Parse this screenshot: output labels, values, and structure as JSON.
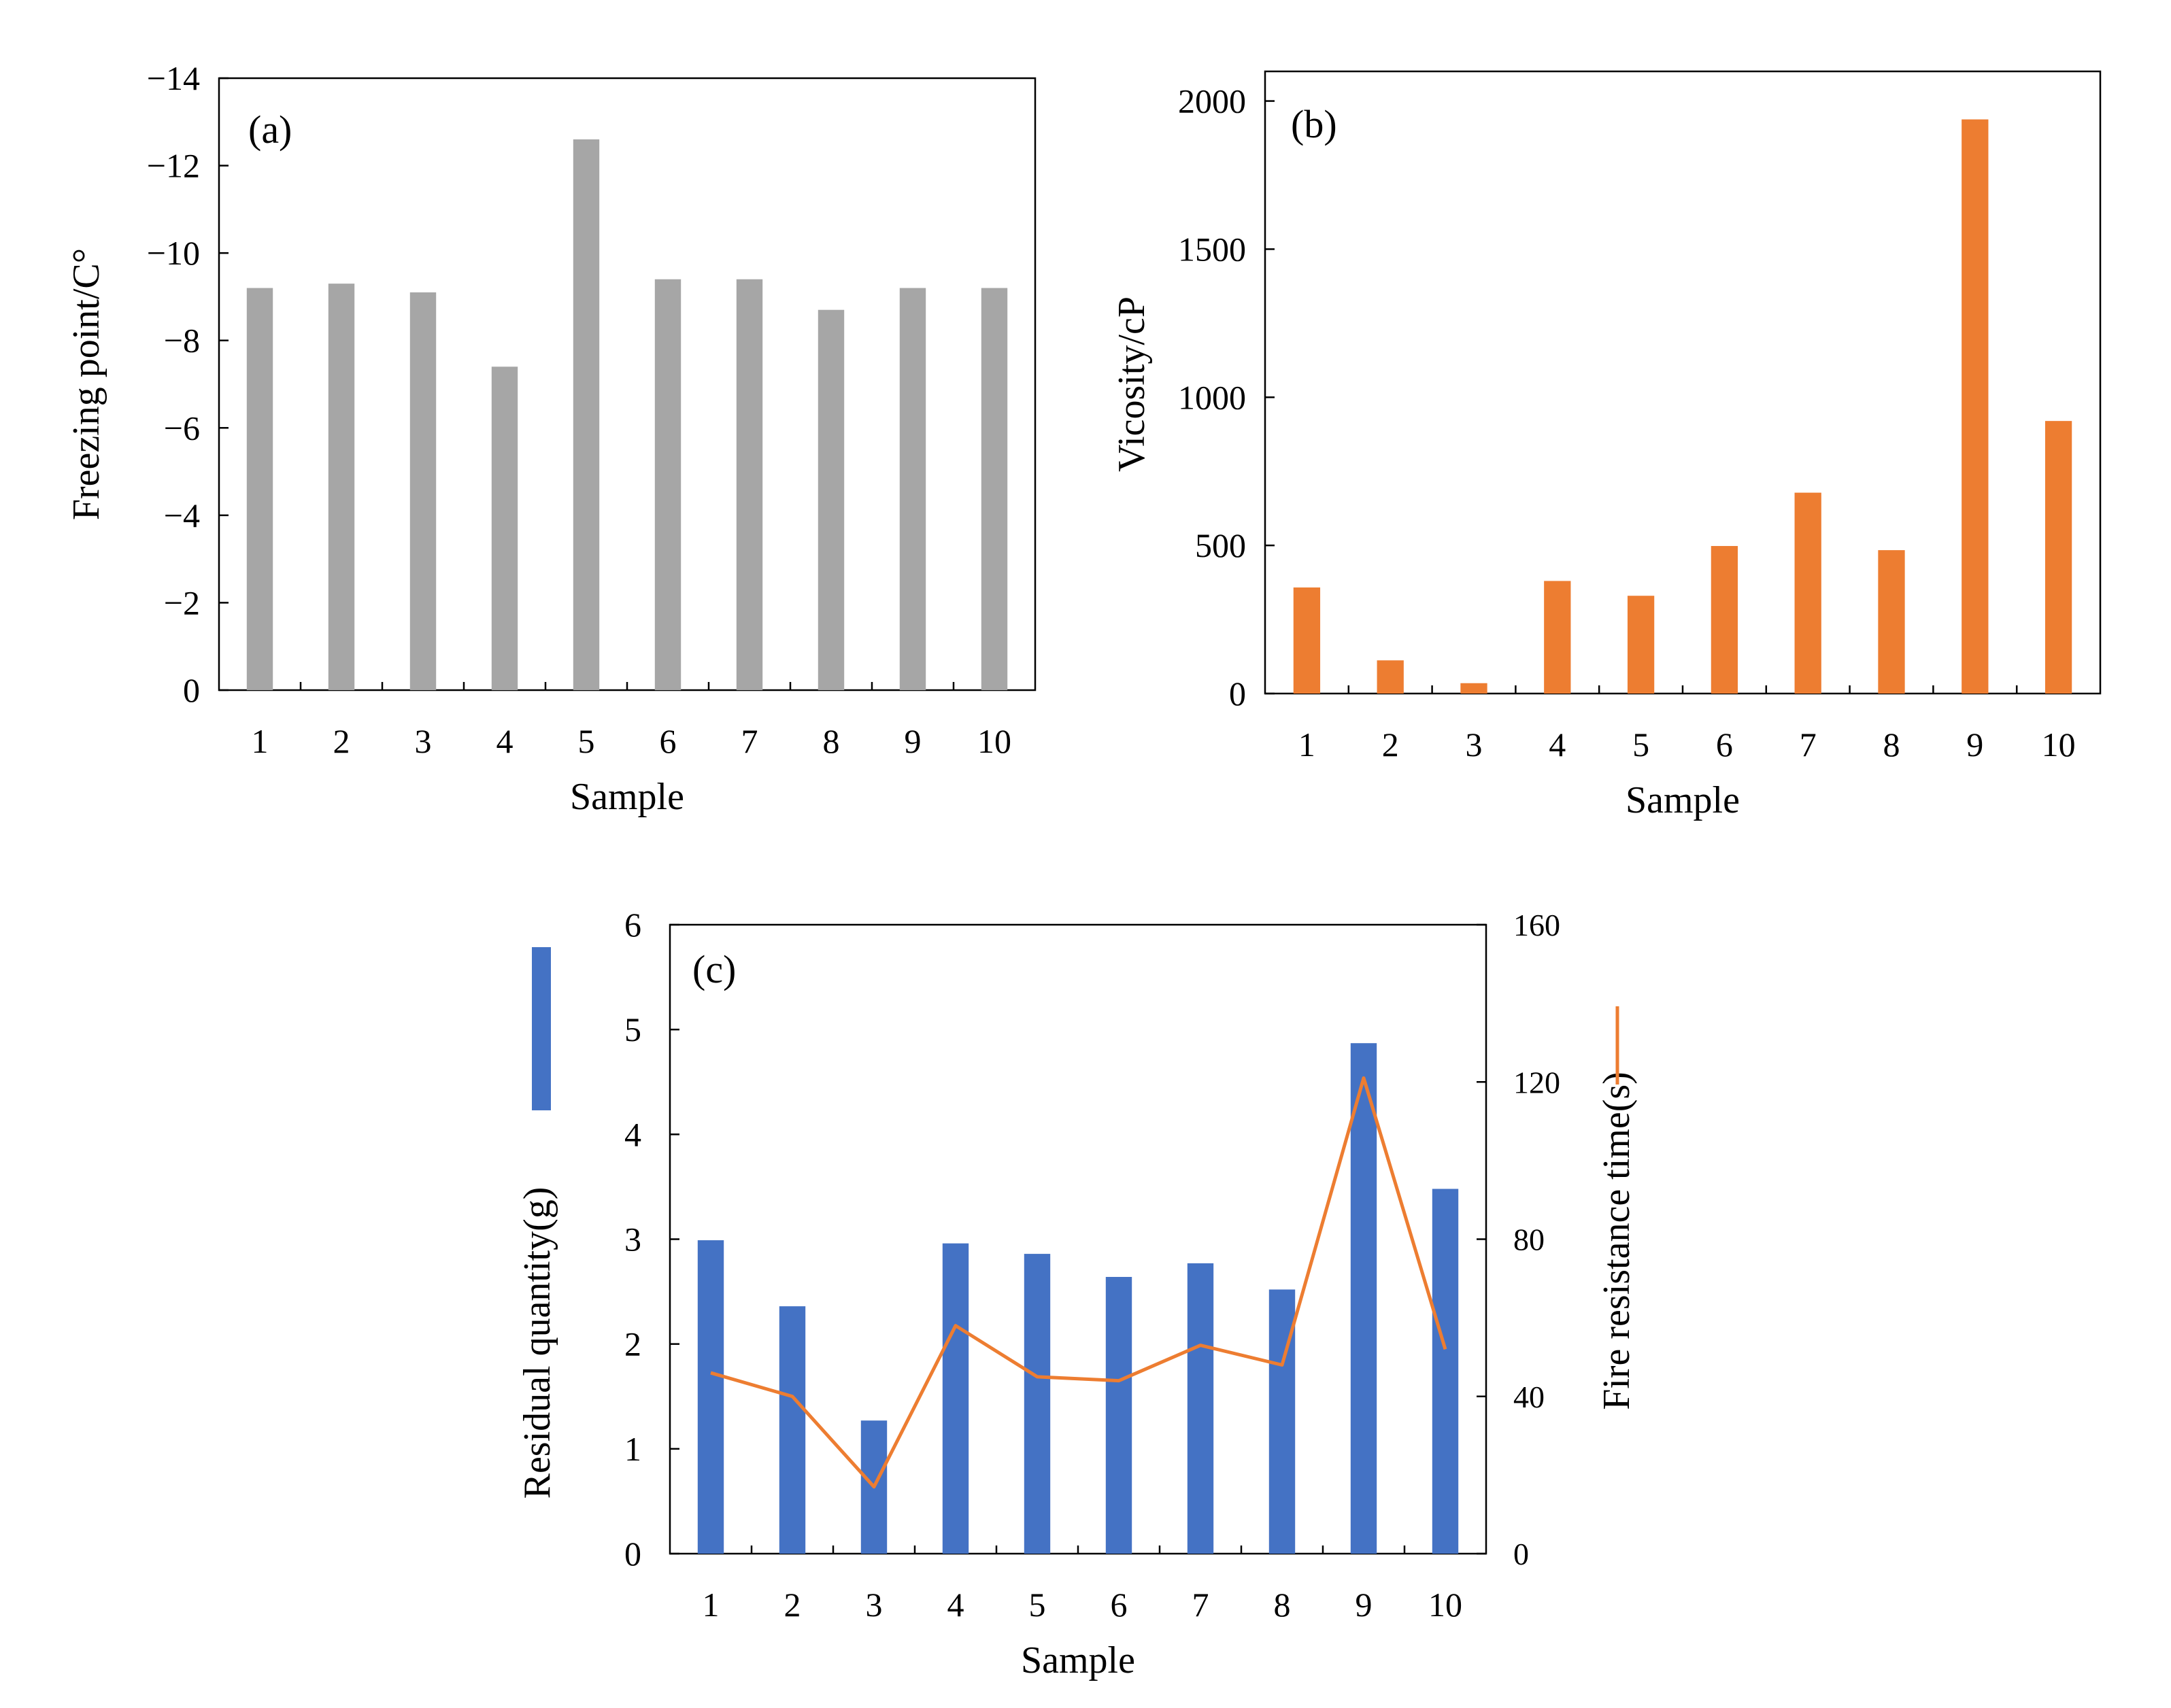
{
  "chart_data": [
    {
      "panel": "(a)",
      "type": "bar",
      "title": "",
      "xlabel": "Sample",
      "ylabel": "Freezing point/C°",
      "categories": [
        "1",
        "2",
        "3",
        "4",
        "5",
        "6",
        "7",
        "8",
        "9",
        "10"
      ],
      "values": [
        -9.2,
        -9.3,
        -9.1,
        -7.4,
        -12.6,
        -9.4,
        -9.4,
        -8.7,
        -9.2,
        -9.2
      ],
      "ylim": [
        0,
        -14
      ],
      "yticks": [
        "−14",
        "−12",
        "−10",
        "−8",
        "−6",
        "−4",
        "−2",
        "0"
      ],
      "ytick_values": [
        -14,
        -12,
        -10,
        -8,
        -6,
        -4,
        -2,
        0
      ],
      "bar_color": "#a6a6a6",
      "grid": false
    },
    {
      "panel": "(b)",
      "type": "bar",
      "title": "",
      "xlabel": "Sample",
      "ylabel": "Vicosity/cP",
      "categories": [
        "1",
        "2",
        "3",
        "4",
        "5",
        "6",
        "7",
        "8",
        "9",
        "10"
      ],
      "values": [
        358,
        112,
        35,
        380,
        330,
        498,
        678,
        484,
        1938,
        920
      ],
      "ylim": [
        0,
        2100
      ],
      "yticks": [
        "0",
        "500",
        "1000",
        "1500",
        "2000"
      ],
      "ytick_values": [
        0,
        500,
        1000,
        1500,
        2000
      ],
      "bar_color": "#ed7d31",
      "grid": false
    },
    {
      "panel": "(c)",
      "type": "bar+line",
      "title": "",
      "xlabel": "Sample",
      "categories": [
        "1",
        "2",
        "3",
        "4",
        "5",
        "6",
        "7",
        "8",
        "9",
        "10"
      ],
      "series": [
        {
          "name": "Residual quantity(g)",
          "type": "bar",
          "axis": "left",
          "values": [
            2.99,
            2.36,
            1.27,
            2.96,
            2.86,
            2.64,
            2.77,
            2.52,
            4.87,
            3.48
          ],
          "color": "#4472c4"
        },
        {
          "name": "Fire resistance time(s)",
          "type": "line",
          "axis": "right",
          "values": [
            46,
            40,
            17,
            58,
            45,
            44,
            53,
            48,
            121,
            52
          ],
          "color": "#ed7d31"
        }
      ],
      "ylabel_left": "Residual quantity(g)",
      "ylabel_right": "Fire resistance time(s)",
      "ylim_left": [
        0,
        6
      ],
      "ylim_right": [
        0,
        160
      ],
      "yticks_left": [
        "0",
        "1",
        "2",
        "3",
        "4",
        "5",
        "6"
      ],
      "ytick_values_left": [
        0,
        1,
        2,
        3,
        4,
        5,
        6
      ],
      "yticks_right": [
        "0",
        "40",
        "80",
        "120",
        "160"
      ],
      "ytick_values_right": [
        0,
        40,
        80,
        120,
        160
      ],
      "legend": "left and right of plot",
      "grid": false
    }
  ]
}
